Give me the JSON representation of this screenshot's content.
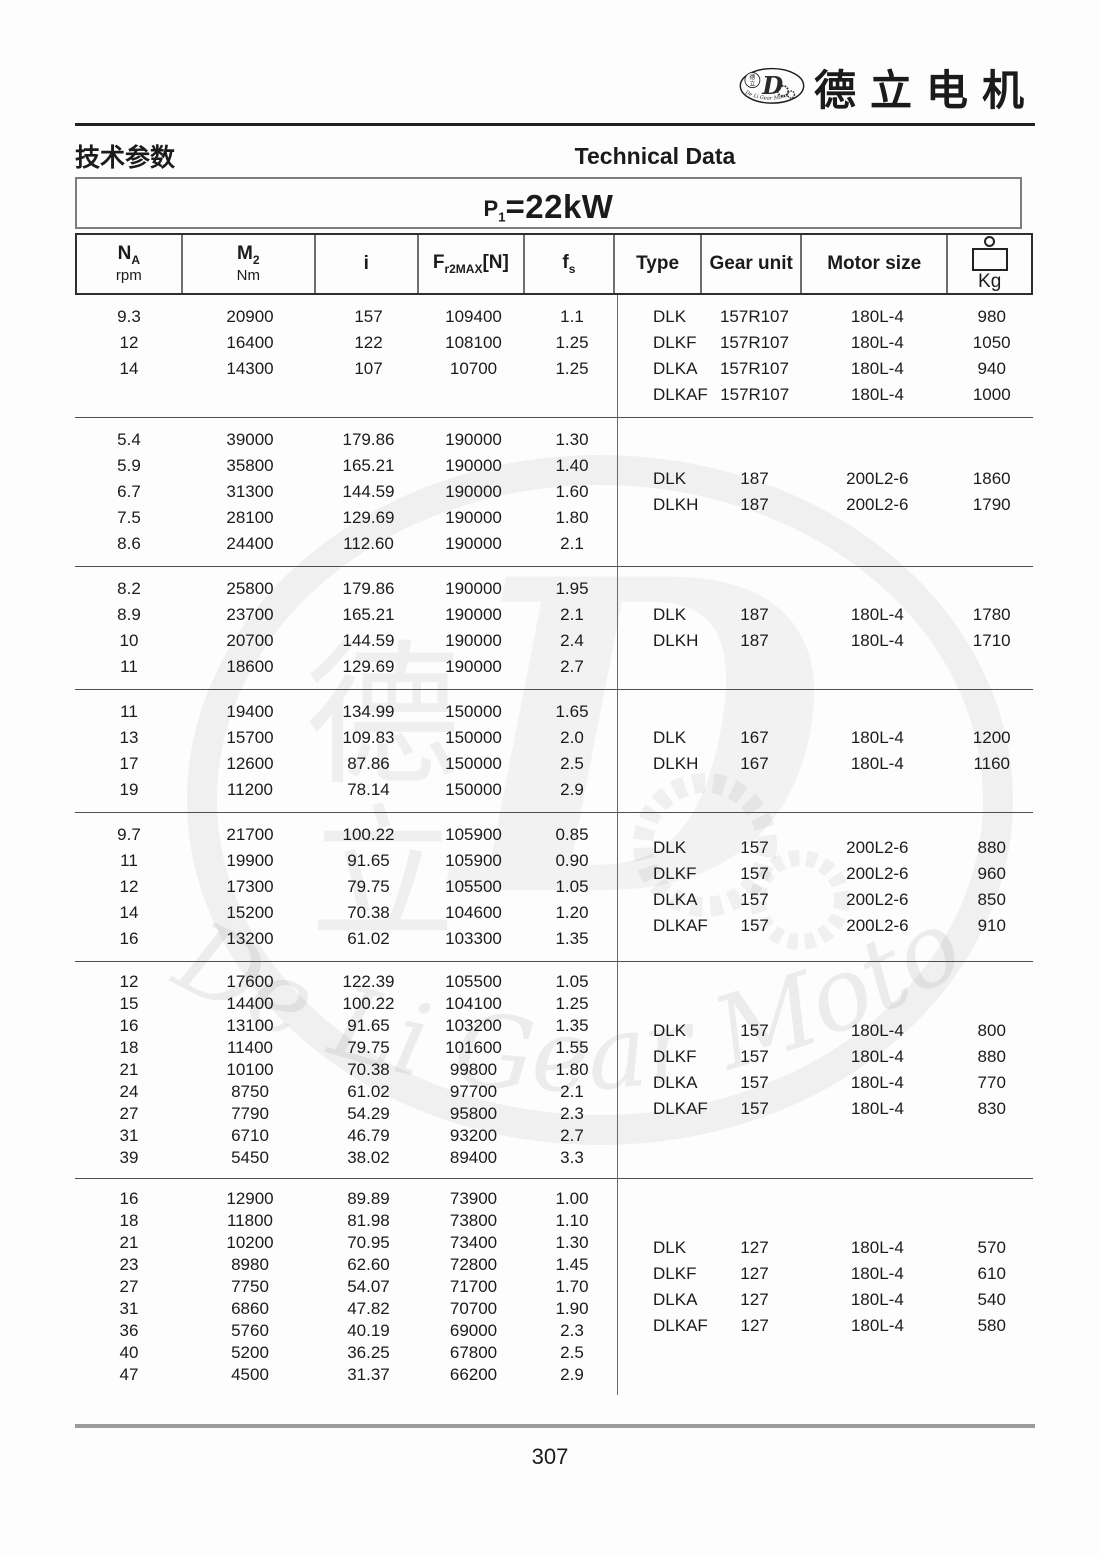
{
  "brand": {
    "title": "德立电机",
    "emblem_letter": "D",
    "emblem_cn_top": "德",
    "emblem_cn_bottom": "立",
    "emblem_script": "De Li Gear Motor"
  },
  "titles": {
    "cn": "技术参数",
    "en": "Technical Data"
  },
  "power": {
    "symbol": "P",
    "symbol_sub": "1",
    "equals": "=",
    "value": "22kW"
  },
  "watermark": {
    "letter": "D",
    "char1": "德",
    "char2": "立",
    "script": "De Li Gear Motor"
  },
  "table": {
    "headers": [
      {
        "label": "N",
        "sub": "A",
        "unit": "rpm"
      },
      {
        "label": "M",
        "sub": "2",
        "unit": "Nm"
      },
      {
        "label": "i"
      },
      {
        "label": "F",
        "sub": "r2MAX",
        "suffix": "[N]"
      },
      {
        "label": "f",
        "sub": "s"
      },
      {
        "label": "Type"
      },
      {
        "label": "Gear unit"
      },
      {
        "label": "Motor size"
      },
      {
        "label": "Kg",
        "icon": "weight-icon"
      }
    ],
    "blocks": [
      {
        "rows": [
          [
            "9.3",
            "20900",
            "157",
            "109400",
            "1.1"
          ],
          [
            "12",
            "16400",
            "122",
            "108100",
            "1.25"
          ],
          [
            "14",
            "14300",
            "107",
            "10700",
            "1.25"
          ]
        ],
        "models": [
          [
            "DLK",
            "157R107",
            "180L-4",
            "980"
          ],
          [
            "DLKF",
            "157R107",
            "180L-4",
            "1050"
          ],
          [
            "DLKA",
            "157R107",
            "180L-4",
            "940"
          ],
          [
            "DLKAF",
            "157R107",
            "180L-4",
            "1000"
          ]
        ]
      },
      {
        "rows": [
          [
            "5.4",
            "39000",
            "179.86",
            "190000",
            "1.30"
          ],
          [
            "5.9",
            "35800",
            "165.21",
            "190000",
            "1.40"
          ],
          [
            "6.7",
            "31300",
            "144.59",
            "190000",
            "1.60"
          ],
          [
            "7.5",
            "28100",
            "129.69",
            "190000",
            "1.80"
          ],
          [
            "8.6",
            "24400",
            "112.60",
            "190000",
            "2.1"
          ]
        ],
        "models": [
          [
            "DLK",
            "187",
            "200L2-6",
            "1860"
          ],
          [
            "DLKH",
            "187",
            "200L2-6",
            "1790"
          ]
        ]
      },
      {
        "rows": [
          [
            "8.2",
            "25800",
            "179.86",
            "190000",
            "1.95"
          ],
          [
            "8.9",
            "23700",
            "165.21",
            "190000",
            "2.1"
          ],
          [
            "10",
            "20700",
            "144.59",
            "190000",
            "2.4"
          ],
          [
            "11",
            "18600",
            "129.69",
            "190000",
            "2.7"
          ]
        ],
        "models": [
          [
            "DLK",
            "187",
            "180L-4",
            "1780"
          ],
          [
            "DLKH",
            "187",
            "180L-4",
            "1710"
          ]
        ]
      },
      {
        "rows": [
          [
            "11",
            "19400",
            "134.99",
            "150000",
            "1.65"
          ],
          [
            "13",
            "15700",
            "109.83",
            "150000",
            "2.0"
          ],
          [
            "17",
            "12600",
            "87.86",
            "150000",
            "2.5"
          ],
          [
            "19",
            "11200",
            "78.14",
            "150000",
            "2.9"
          ]
        ],
        "models": [
          [
            "DLK",
            "167",
            "180L-4",
            "1200"
          ],
          [
            "DLKH",
            "167",
            "180L-4",
            "1160"
          ]
        ]
      },
      {
        "rows": [
          [
            "9.7",
            "21700",
            "100.22",
            "105900",
            "0.85"
          ],
          [
            "11",
            "19900",
            "91.65",
            "105900",
            "0.90"
          ],
          [
            "12",
            "17300",
            "79.75",
            "105500",
            "1.05"
          ],
          [
            "14",
            "15200",
            "70.38",
            "104600",
            "1.20"
          ],
          [
            "16",
            "13200",
            "61.02",
            "103300",
            "1.35"
          ]
        ],
        "models": [
          [
            "DLK",
            "157",
            "200L2-6",
            "880"
          ],
          [
            "DLKF",
            "157",
            "200L2-6",
            "960"
          ],
          [
            "DLKA",
            "157",
            "200L2-6",
            "850"
          ],
          [
            "DLKAF",
            "157",
            "200L2-6",
            "910"
          ]
        ]
      },
      {
        "rows": [
          [
            "12",
            "17600",
            "122.39",
            "105500",
            "1.05"
          ],
          [
            "15",
            "14400",
            "100.22",
            "104100",
            "1.25"
          ],
          [
            "16",
            "13100",
            "91.65",
            "103200",
            "1.35"
          ],
          [
            "18",
            "11400",
            "79.75",
            "101600",
            "1.55"
          ],
          [
            "21",
            "10100",
            "70.38",
            "99800",
            "1.80"
          ],
          [
            "24",
            "8750",
            "61.02",
            "97700",
            "2.1"
          ],
          [
            "27",
            "7790",
            "54.29",
            "95800",
            "2.3"
          ],
          [
            "31",
            "6710",
            "46.79",
            "93200",
            "2.7"
          ],
          [
            "39",
            "5450",
            "38.02",
            "89400",
            "3.3"
          ]
        ],
        "models": [
          [
            "DLK",
            "157",
            "180L-4",
            "800"
          ],
          [
            "DLKF",
            "157",
            "180L-4",
            "880"
          ],
          [
            "DLKA",
            "157",
            "180L-4",
            "770"
          ],
          [
            "DLKAF",
            "157",
            "180L-4",
            "830"
          ]
        ]
      },
      {
        "rows": [
          [
            "16",
            "12900",
            "89.89",
            "73900",
            "1.00"
          ],
          [
            "18",
            "11800",
            "81.98",
            "73800",
            "1.10"
          ],
          [
            "21",
            "10200",
            "70.95",
            "73400",
            "1.30"
          ],
          [
            "23",
            "8980",
            "62.60",
            "72800",
            "1.45"
          ],
          [
            "27",
            "7750",
            "54.07",
            "71700",
            "1.70"
          ],
          [
            "31",
            "6860",
            "47.82",
            "70700",
            "1.90"
          ],
          [
            "36",
            "5760",
            "40.19",
            "69000",
            "2.3"
          ],
          [
            "40",
            "5200",
            "36.25",
            "67800",
            "2.5"
          ],
          [
            "47",
            "4500",
            "31.37",
            "66200",
            "2.9"
          ]
        ],
        "models": [
          [
            "DLK",
            "127",
            "180L-4",
            "570"
          ],
          [
            "DLKF",
            "127",
            "180L-4",
            "610"
          ],
          [
            "DLKA",
            "127",
            "180L-4",
            "540"
          ],
          [
            "DLKAF",
            "127",
            "180L-4",
            "580"
          ]
        ]
      }
    ]
  },
  "footer": {
    "page_number": "307"
  }
}
